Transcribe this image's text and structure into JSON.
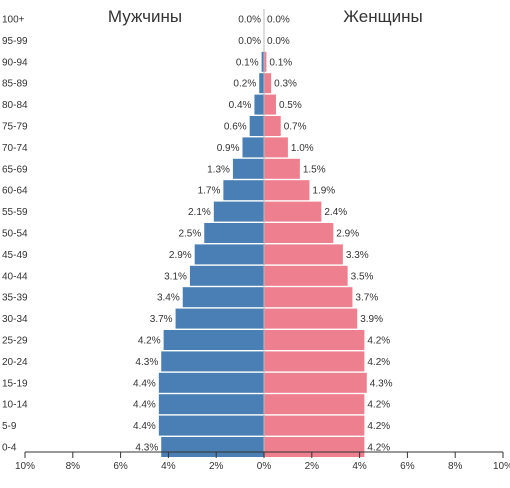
{
  "chart_data": {
    "type": "bar",
    "orientation": "horizontal-population-pyramid",
    "title_left": "Мужчины",
    "title_right": "Женщины",
    "categories": [
      "100+",
      "95-99",
      "90-94",
      "85-89",
      "80-84",
      "75-79",
      "70-74",
      "65-69",
      "60-64",
      "55-59",
      "50-54",
      "45-49",
      "40-44",
      "35-39",
      "30-34",
      "25-29",
      "20-24",
      "15-19",
      "10-14",
      "5-9",
      "0-4"
    ],
    "series": [
      {
        "name": "Мужчины",
        "side": "left",
        "color": "#4a7fb5",
        "values": [
          0.0,
          0.0,
          0.1,
          0.2,
          0.4,
          0.6,
          0.9,
          1.3,
          1.7,
          2.1,
          2.5,
          2.9,
          3.1,
          3.4,
          3.7,
          4.2,
          4.3,
          4.4,
          4.4,
          4.4,
          4.3
        ]
      },
      {
        "name": "Женщины",
        "side": "right",
        "color": "#ee7f8e",
        "values": [
          0.0,
          0.0,
          0.1,
          0.3,
          0.5,
          0.7,
          1.0,
          1.5,
          1.9,
          2.4,
          2.9,
          3.3,
          3.5,
          3.7,
          3.9,
          4.2,
          4.2,
          4.3,
          4.2,
          4.2,
          4.2
        ]
      }
    ],
    "x_ticks": [
      "10%",
      "8%",
      "6%",
      "4%",
      "2%",
      "0%",
      "2%",
      "4%",
      "6%",
      "8%",
      "10%"
    ],
    "xlim": [
      -10,
      10
    ],
    "unit": "%",
    "grid": false
  }
}
